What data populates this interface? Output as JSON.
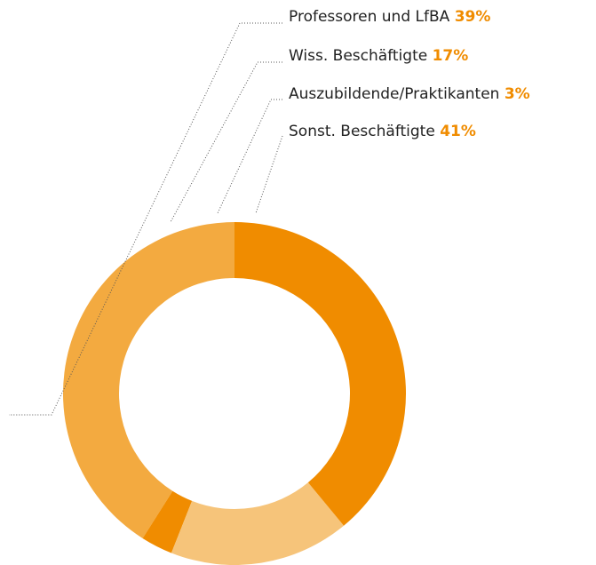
{
  "chart_data": {
    "type": "donut",
    "categories": [
      "Professoren und LfBA",
      "Wiss. Beschäftigte",
      "Auszubildende/Praktikanten",
      "Sonst. Beschäftigte"
    ],
    "values": [
      39,
      17,
      3,
      41
    ],
    "value_labels": [
      "39%",
      "17%",
      "3%",
      "41%"
    ],
    "colors": [
      "#f08c00",
      "#f6c47a",
      "#f08c00",
      "#f3aa40"
    ],
    "label_color": "#f08c00"
  }
}
